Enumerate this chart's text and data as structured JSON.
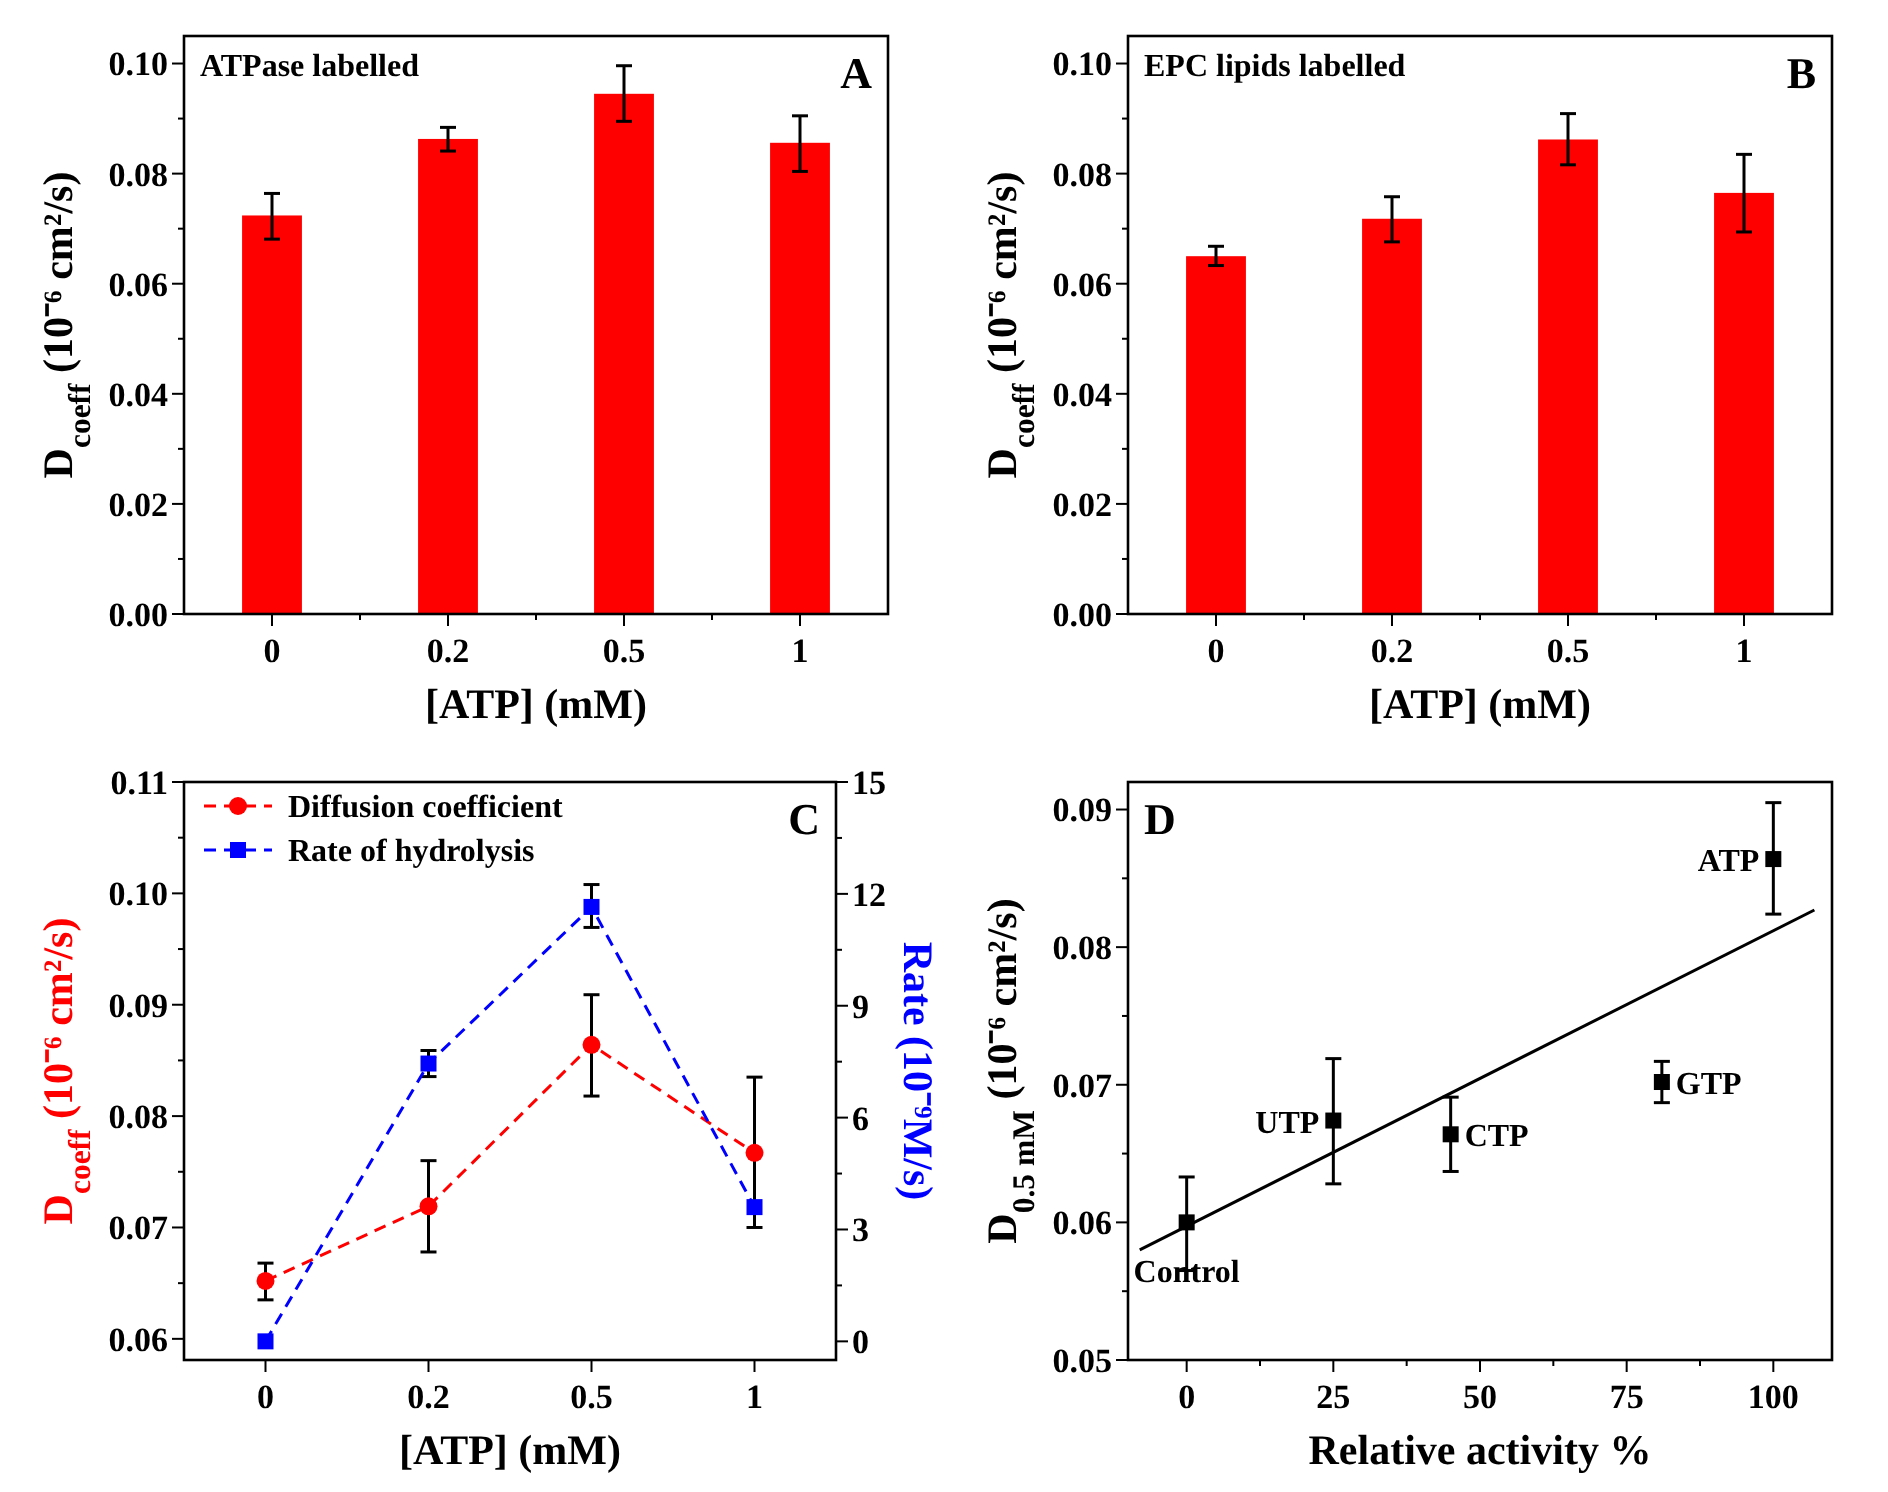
{
  "chart_data": [
    {
      "type": "bar",
      "title": "ATPase labelled",
      "annotations": [
        "A"
      ],
      "xlabel": "[ATP] (mM)",
      "ylabel": "D$_{coeff}$ (10⁻⁶ cm²/s)",
      "categories": [
        "0",
        "0.2",
        "0.5",
        "1"
      ],
      "values": [
        0.0724,
        0.0863,
        0.0945,
        0.0856
      ],
      "color": "#ff0000",
      "errors": [
        [
          0.0681,
          0.0764
        ],
        [
          0.0841,
          0.0884
        ],
        [
          0.0895,
          0.0996
        ],
        [
          0.0804,
          0.0905
        ]
      ],
      "ylim": [
        0,
        0.105
      ],
      "yticks": [
        {
          "value": 0,
          "label": "0.00"
        },
        {
          "value": 0.01,
          "label": null
        },
        {
          "value": 0.02,
          "label": "0.02"
        },
        {
          "value": 0.03,
          "label": null
        },
        {
          "value": 0.04,
          "label": "0.04"
        },
        {
          "value": 0.05,
          "label": null
        },
        {
          "value": 0.06,
          "label": "0.06"
        },
        {
          "value": 0.07,
          "label": null
        },
        {
          "value": 0.08,
          "label": "0.08"
        },
        {
          "value": 0.09,
          "label": null
        },
        {
          "value": 0.1,
          "label": "0.10"
        }
      ],
      "legend": false
    },
    {
      "type": "bar",
      "title": "EPC lipids labelled",
      "annotations": [
        "B"
      ],
      "xlabel": "[ATP] (mM)",
      "ylabel": "D$_{coeff}$ (10⁻⁶ cm²/s)",
      "categories": [
        "0",
        "0.2",
        "0.5",
        "1"
      ],
      "values": [
        0.065,
        0.0718,
        0.0862,
        0.0765
      ],
      "color": "#ff0000",
      "errors": [
        [
          0.0633,
          0.0668
        ],
        [
          0.0676,
          0.0758
        ],
        [
          0.0816,
          0.0909
        ],
        [
          0.0694,
          0.0835
        ]
      ],
      "ylim": [
        0,
        0.105
      ],
      "yticks": [
        {
          "value": 0,
          "label": "0.00"
        },
        {
          "value": 0.01,
          "label": null
        },
        {
          "value": 0.02,
          "label": "0.02"
        },
        {
          "value": 0.03,
          "label": null
        },
        {
          "value": 0.04,
          "label": "0.04"
        },
        {
          "value": 0.05,
          "label": null
        },
        {
          "value": 0.06,
          "label": "0.06"
        },
        {
          "value": 0.07,
          "label": null
        },
        {
          "value": 0.08,
          "label": "0.08"
        },
        {
          "value": 0.09,
          "label": null
        },
        {
          "value": 0.1,
          "label": "0.10"
        }
      ],
      "legend": false
    },
    {
      "type": "line",
      "annotations": [
        "C"
      ],
      "xlabel": "[ATP] (mM)",
      "ylabel": "D$_{coeff}$ (10⁻⁶ cm²/s)",
      "y2label": "Rate (10⁻⁹M/s)",
      "categories": [
        "0",
        "0.2",
        "0.5",
        "1"
      ],
      "series": [
        {
          "name": "Diffusion coefficient",
          "color": "#ff0000",
          "marker": "circle",
          "line_style": "dashed",
          "values": [
            0.0652,
            0.0719,
            0.0864,
            0.0767
          ],
          "errors": [
            [
              0.0635,
              0.0668
            ],
            [
              0.0678,
              0.076
            ],
            [
              0.0818,
              0.0909
            ],
            [
              0.07,
              0.0835
            ]
          ]
        },
        {
          "name": "Rate of hydrolysis",
          "color": "#0000ff",
          "marker": "square",
          "line_style": "dashed",
          "axis": "y2",
          "values": [
            0,
            7.45,
            11.65,
            3.6
          ],
          "errors": [
            null,
            [
              7.1,
              7.8
            ],
            [
              11.1,
              12.25
            ],
            null
          ]
        }
      ],
      "ylim": [
        0.0581,
        0.11
      ],
      "yticks": [
        {
          "value": 0.06,
          "label": "0.06"
        },
        {
          "value": 0.065,
          "label": null
        },
        {
          "value": 0.07,
          "label": "0.07"
        },
        {
          "value": 0.075,
          "label": null
        },
        {
          "value": 0.08,
          "label": "0.08"
        },
        {
          "value": 0.085,
          "label": null
        },
        {
          "value": 0.09,
          "label": "0.09"
        },
        {
          "value": 0.095,
          "label": null
        },
        {
          "value": 0.1,
          "label": "0.10"
        },
        {
          "value": 0.105,
          "label": null
        },
        {
          "value": 0.11,
          "label": "0.11"
        }
      ],
      "y2lim": [
        -0.5,
        15
      ],
      "y2ticks": [
        0,
        {
          "value": 1.5,
          "label": null
        },
        3,
        {
          "value": 4.5,
          "label": null
        },
        6,
        {
          "value": 7.5,
          "label": null
        },
        9,
        {
          "value": 10.5,
          "label": null
        },
        12,
        {
          "value": 13.5,
          "label": null
        },
        15
      ],
      "legend": "top left"
    },
    {
      "type": "scatter",
      "annotations": [
        "D",
        {
          "text": "Control",
          "x": 0,
          "y": 0.06
        },
        {
          "text": "UTP",
          "x": 25,
          "y": 0.0674
        },
        {
          "text": "CTP",
          "x": 45,
          "y": 0.0664
        },
        {
          "text": "GTP",
          "x": 81,
          "y": 0.0702
        },
        {
          "text": "ATP",
          "x": 100,
          "y": 0.0864
        }
      ],
      "xlabel": "Relative activity %",
      "ylabel": "D$_{0.5 mM}$ (10⁻⁶ cm²/s)",
      "series": [
        {
          "color": "#000000",
          "marker": "square",
          "x": [
            0,
            25,
            45,
            81,
            100
          ],
          "values": [
            0.06,
            0.0674,
            0.0664,
            0.0702,
            0.0864
          ],
          "errors": [
            [
              0.0565,
              0.0633
            ],
            [
              0.0628,
              0.0719
            ],
            [
              0.0637,
              0.0691
            ],
            [
              0.0687,
              0.0717
            ],
            [
              0.0824,
              0.0905
            ]
          ]
        },
        {
          "type": "line",
          "color": "#000000",
          "marker": "none",
          "line_style": "solid",
          "x": [
            -8,
            107
          ],
          "values": [
            0.058,
            0.0827
          ]
        }
      ],
      "xlim": [
        -10,
        110
      ],
      "xticks": [
        0,
        {
          "value": 12.5,
          "label": null
        },
        25,
        {
          "value": 37.5,
          "label": null
        },
        50,
        {
          "value": 62.5,
          "label": null
        },
        75,
        {
          "value": 87.5,
          "label": null
        },
        100
      ],
      "ylim": [
        0.05,
        0.092
      ],
      "yticks": [
        {
          "value": 0.05,
          "label": "0.05"
        },
        {
          "value": 0.055,
          "label": null
        },
        {
          "value": 0.06,
          "label": "0.06"
        },
        {
          "value": 0.065,
          "label": null
        },
        {
          "value": 0.07,
          "label": "0.07"
        },
        {
          "value": 0.075,
          "label": null
        },
        {
          "value": 0.08,
          "label": "0.08"
        },
        {
          "value": 0.085,
          "label": null
        },
        {
          "value": 0.09,
          "label": "0.09"
        }
      ],
      "legend": false
    }
  ]
}
